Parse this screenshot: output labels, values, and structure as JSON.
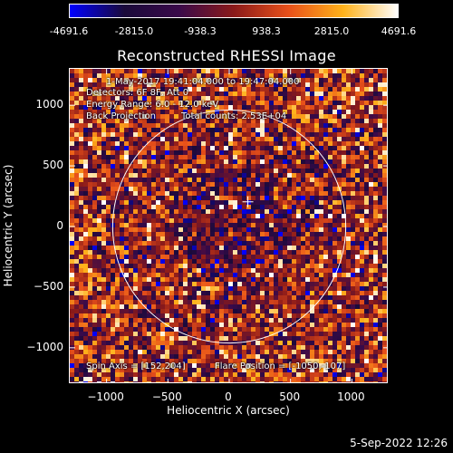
{
  "colorbar": {
    "tick_labels": [
      "-4691.6",
      "-2815.0",
      "-938.3",
      "938.3",
      "2815.0",
      "4691.6"
    ],
    "range": [
      -4691.6,
      4691.6
    ]
  },
  "title": "Reconstructed RHESSI Image",
  "annotations": {
    "time_range": "1-May-2017 19:41:04.000 to 19:47:04.000",
    "detectors": "Detectors: 6F 8F, Att 0",
    "energy_range": "Energy Range: 6.0 - 12.0 keV",
    "method": "Back Projection",
    "total_counts": "Total counts: 2.53E+04",
    "spin_axis": "Spin Axis = [152,204]",
    "flare_position": "Flare Position = [-1050,-107]"
  },
  "chart_data": {
    "type": "heatmap",
    "title": "Reconstructed RHESSI Image",
    "xlabel": "Heliocentric X (arcsec)",
    "ylabel": "Heliocentric Y (arcsec)",
    "xlim": [
      -1300,
      1300
    ],
    "ylim": [
      -1300,
      1300
    ],
    "x_ticks": [
      -1000,
      -500,
      0,
      500,
      1000
    ],
    "y_ticks": [
      -1000,
      -500,
      0,
      500,
      1000
    ],
    "x_tick_labels": [
      "−1000",
      "−500",
      "0",
      "500",
      "1000"
    ],
    "y_tick_labels": [
      "−1000",
      "−500",
      "0",
      "500",
      "1000"
    ],
    "solar_disk": {
      "center": [
        0,
        0
      ],
      "radius": 950
    },
    "marker": {
      "position": [
        152,
        204
      ],
      "symbol": "+"
    },
    "value_range": [
      -4691.6,
      4691.6
    ],
    "colormap": [
      "#0000ff",
      "#1a0a3a",
      "#3a0a4a",
      "#8a1a1a",
      "#e8501a",
      "#ffb21a",
      "#ffffff"
    ]
  },
  "footer": "5-Sep-2022 12:26"
}
